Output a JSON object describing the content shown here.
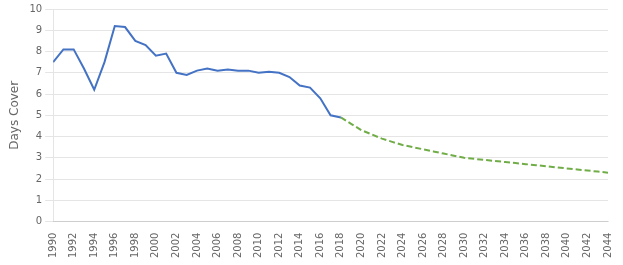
{
  "chart_data": {
    "type": "line",
    "ylabel": "Days Cover",
    "series": [
      {
        "color": "#4472C4",
        "line_style": "solid",
        "x": [
          1990,
          1991,
          1992,
          1993,
          1994,
          1995,
          1996,
          1997,
          1998,
          1999,
          2000,
          2001,
          2002,
          2003,
          2004,
          2005,
          2006,
          2007,
          2008,
          2009,
          2010,
          2011,
          2012,
          2013,
          2014,
          2015,
          2016,
          2017,
          2018
        ],
        "values": [
          7.5,
          8.1,
          8.1,
          7.2,
          6.2,
          7.5,
          9.2,
          9.15,
          8.5,
          8.3,
          7.8,
          7.9,
          7.0,
          6.9,
          7.1,
          7.2,
          7.1,
          7.15,
          7.1,
          7.1,
          7.0,
          7.05,
          7.0,
          6.8,
          6.4,
          6.3,
          5.8,
          5.0,
          4.9
        ]
      },
      {
        "color": "#70AD47",
        "line_style": "dashed",
        "x": [
          2018,
          2019,
          2020,
          2021,
          2022,
          2023,
          2024,
          2025,
          2026,
          2027,
          2028,
          2029,
          2030,
          2031,
          2032,
          2033,
          2034,
          2035,
          2036,
          2037,
          2038,
          2039,
          2040,
          2041,
          2042,
          2043,
          2044
        ],
        "values": [
          4.9,
          4.6,
          4.3,
          4.1,
          3.9,
          3.75,
          3.6,
          3.5,
          3.4,
          3.3,
          3.2,
          3.1,
          3.0,
          2.95,
          2.9,
          2.85,
          2.8,
          2.75,
          2.7,
          2.65,
          2.6,
          2.55,
          2.5,
          2.45,
          2.4,
          2.35,
          2.3
        ]
      }
    ],
    "xlim": [
      1990,
      2044
    ],
    "xticks": [
      1990,
      1992,
      1994,
      1996,
      1998,
      2000,
      2002,
      2004,
      2006,
      2008,
      2010,
      2012,
      2014,
      2016,
      2018,
      2020,
      2022,
      2024,
      2026,
      2028,
      2030,
      2032,
      2034,
      2036,
      2038,
      2040,
      2042,
      2044
    ],
    "ylim": [
      0,
      10
    ],
    "yticks": [
      0,
      1,
      2,
      3,
      4,
      5,
      6,
      7,
      8,
      9,
      10
    ],
    "grid": "y"
  }
}
